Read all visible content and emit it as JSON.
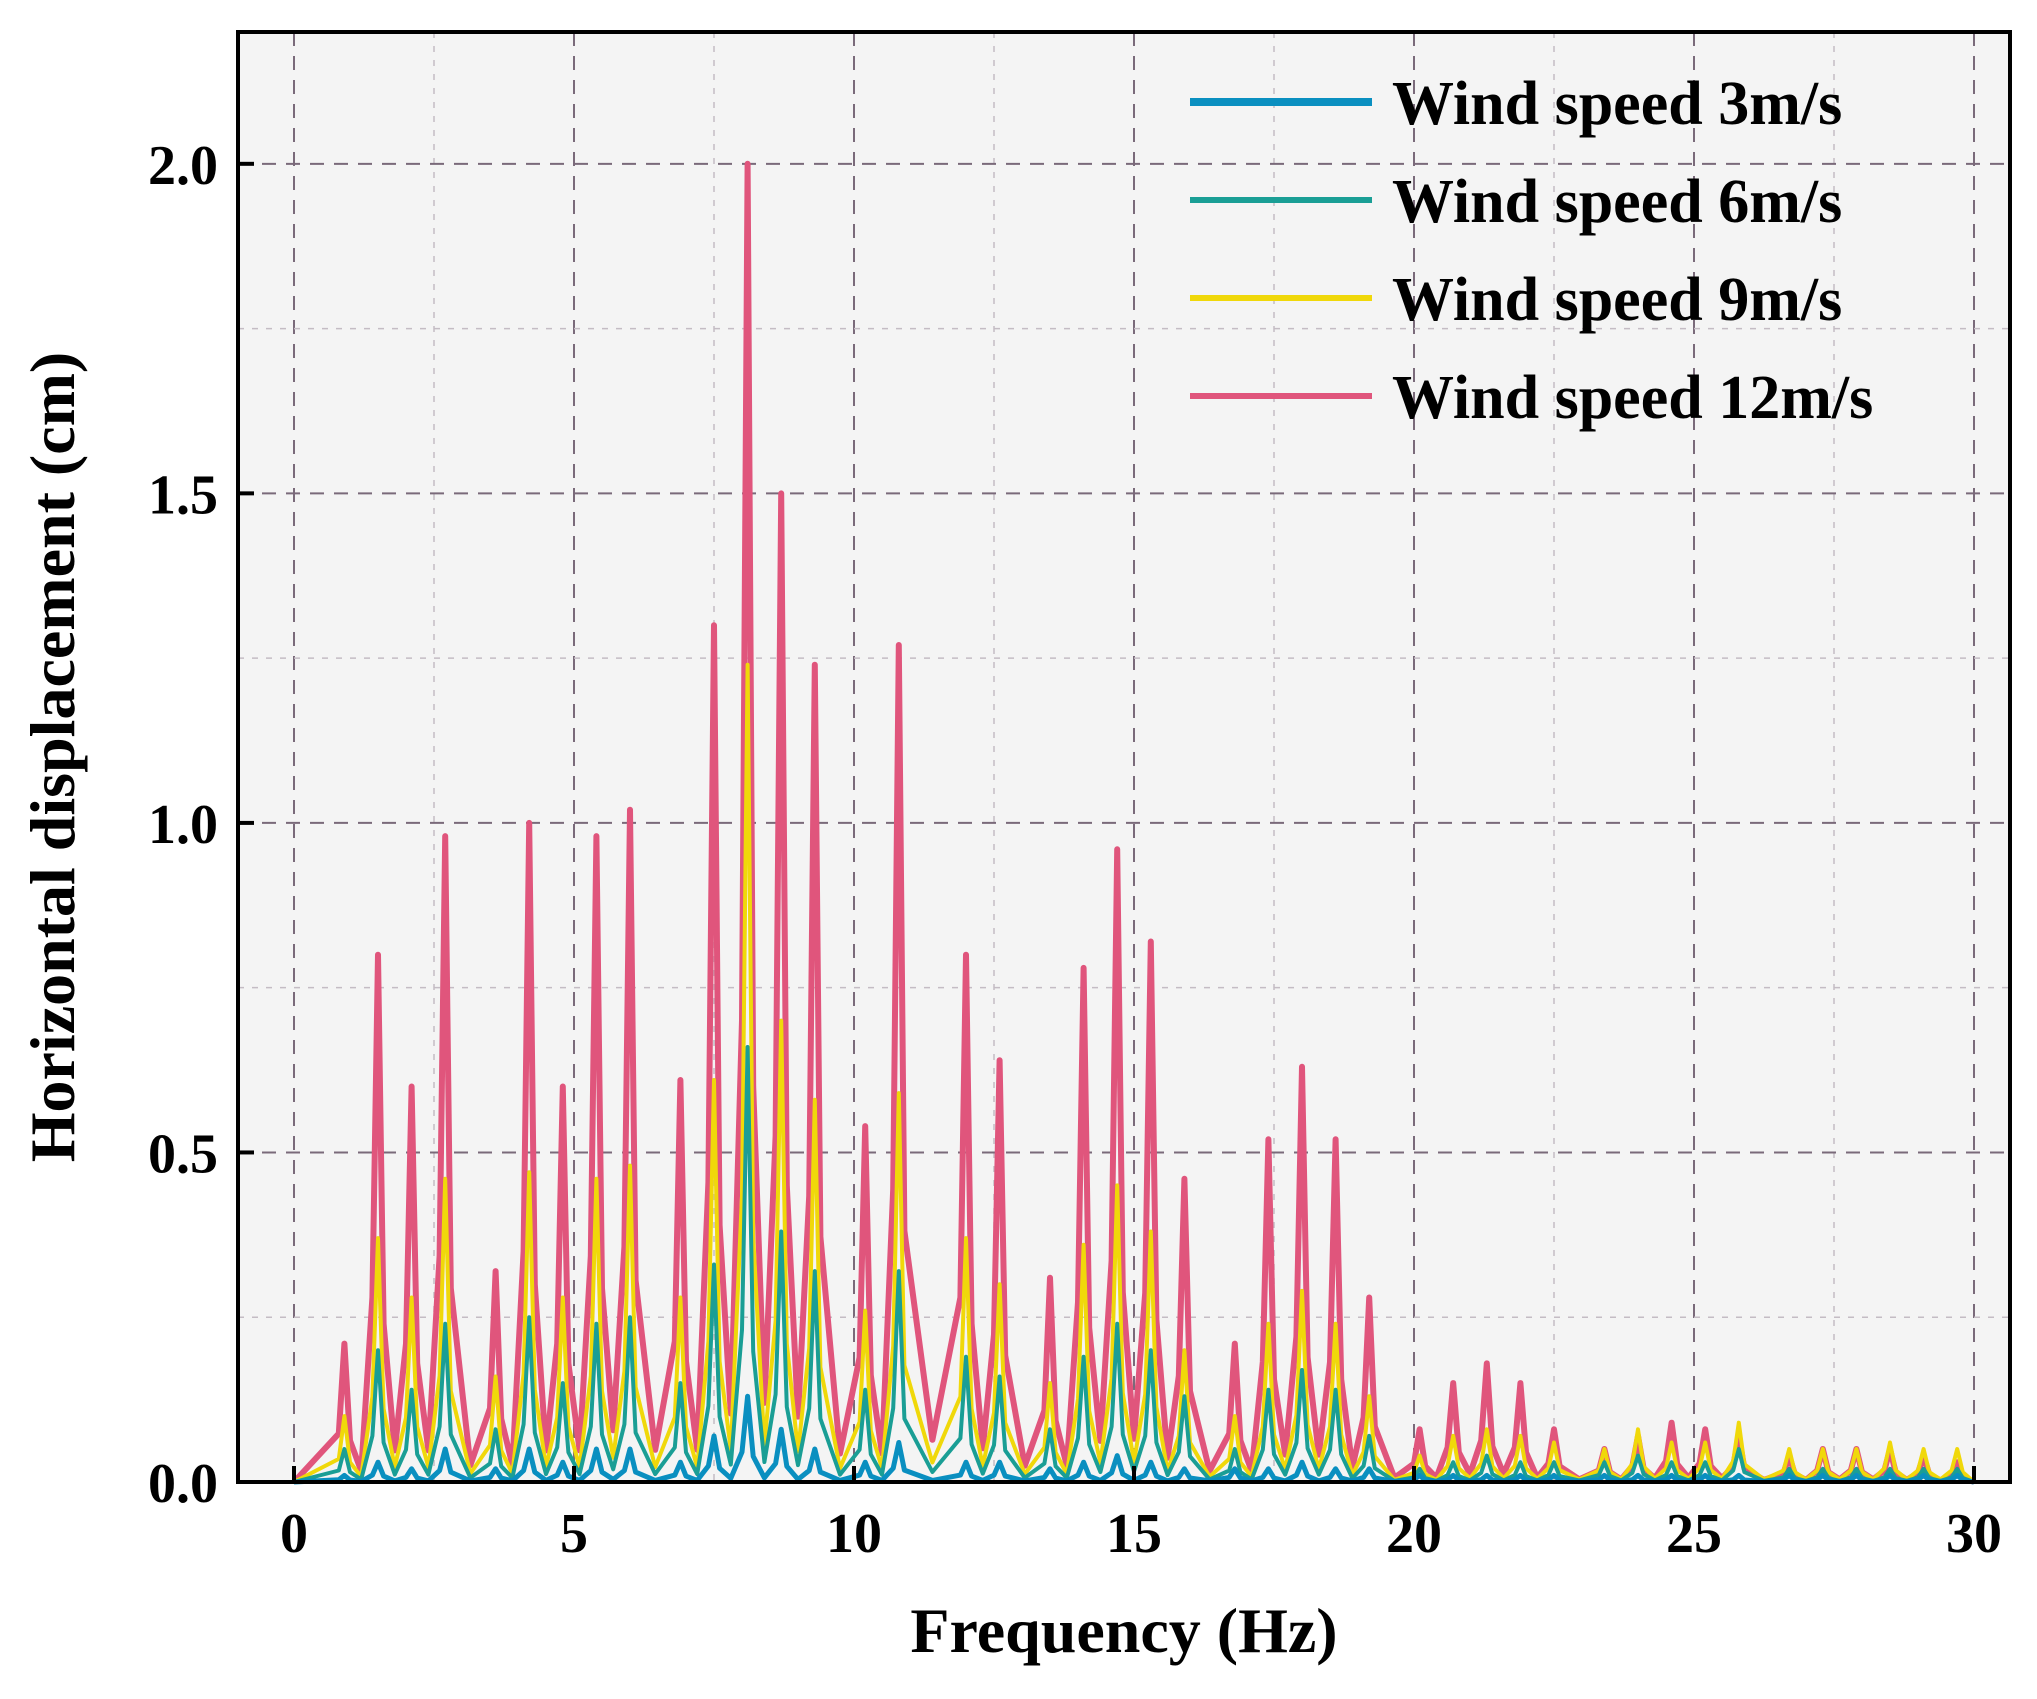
{
  "chart_data": {
    "type": "line",
    "title": "",
    "xlabel": "Frequency (Hz)",
    "ylabel": "Horizontal  displacement (cm)",
    "xlim": [
      -1,
      30.5
    ],
    "ylim": [
      0,
      2.2
    ],
    "xticks": [
      0,
      5,
      10,
      15,
      20,
      25,
      30
    ],
    "yticks": [
      0.0,
      0.5,
      1.0,
      1.5,
      2.0
    ],
    "xtick_labels": [
      "0",
      "5",
      "10",
      "15",
      "20",
      "25",
      "30"
    ],
    "ytick_labels": [
      "0.0",
      "0.5",
      "1.0",
      "1.5",
      "2.0"
    ],
    "grid": true,
    "legend_position": "top-right",
    "peak_frequencies": [
      0.9,
      1.5,
      2.1,
      2.7,
      3.6,
      4.2,
      4.8,
      5.4,
      6.0,
      6.9,
      7.5,
      8.1,
      8.7,
      9.3,
      10.2,
      10.8,
      12.0,
      12.6,
      13.5,
      14.1,
      14.7,
      15.3,
      15.9,
      16.8,
      17.4,
      18.0,
      18.6,
      19.2,
      20.1,
      20.7,
      21.3,
      21.9,
      22.5,
      23.4,
      24.0,
      24.6,
      25.2,
      25.8,
      26.7,
      27.3,
      27.9,
      28.5,
      29.1,
      29.7
    ],
    "series": [
      {
        "name": "Wind speed 3m/s",
        "color": "#0a8fc0",
        "values": [
          0.01,
          0.03,
          0.02,
          0.05,
          0.02,
          0.05,
          0.03,
          0.05,
          0.05,
          0.03,
          0.07,
          0.13,
          0.08,
          0.05,
          0.03,
          0.06,
          0.03,
          0.03,
          0.02,
          0.03,
          0.04,
          0.03,
          0.02,
          0.02,
          0.02,
          0.03,
          0.02,
          0.02,
          0.01,
          0.01,
          0.01,
          0.01,
          0.01,
          0.01,
          0.01,
          0.01,
          0.01,
          0.01,
          0.01,
          0.01,
          0.01,
          0.01,
          0.01,
          0.01
        ]
      },
      {
        "name": "Wind speed 6m/s",
        "color": "#1a9e95",
        "values": [
          0.05,
          0.2,
          0.14,
          0.24,
          0.08,
          0.25,
          0.15,
          0.24,
          0.25,
          0.15,
          0.33,
          0.66,
          0.38,
          0.32,
          0.14,
          0.32,
          0.19,
          0.16,
          0.08,
          0.19,
          0.24,
          0.2,
          0.13,
          0.05,
          0.14,
          0.17,
          0.14,
          0.07,
          0.02,
          0.03,
          0.04,
          0.03,
          0.03,
          0.03,
          0.04,
          0.03,
          0.03,
          0.05,
          0.02,
          0.02,
          0.02,
          0.02,
          0.02,
          0.02
        ]
      },
      {
        "name": "Wind speed 9m/s",
        "color": "#f0d80a",
        "values": [
          0.1,
          0.37,
          0.28,
          0.46,
          0.16,
          0.47,
          0.28,
          0.46,
          0.48,
          0.28,
          0.61,
          1.24,
          0.7,
          0.58,
          0.26,
          0.59,
          0.37,
          0.3,
          0.15,
          0.36,
          0.45,
          0.38,
          0.2,
          0.1,
          0.24,
          0.29,
          0.24,
          0.13,
          0.04,
          0.07,
          0.08,
          0.07,
          0.06,
          0.05,
          0.08,
          0.06,
          0.06,
          0.09,
          0.05,
          0.05,
          0.05,
          0.06,
          0.05,
          0.05
        ]
      },
      {
        "name": "Wind speed 12m/s",
        "color": "#e0557c",
        "values": [
          0.21,
          0.8,
          0.6,
          0.98,
          0.32,
          1.0,
          0.6,
          0.98,
          1.02,
          0.61,
          1.3,
          2.0,
          1.5,
          1.24,
          0.54,
          1.27,
          0.8,
          0.64,
          0.31,
          0.78,
          0.96,
          0.82,
          0.46,
          0.21,
          0.52,
          0.63,
          0.52,
          0.28,
          0.08,
          0.15,
          0.18,
          0.15,
          0.08,
          0.05,
          0.07,
          0.09,
          0.08,
          0.07,
          0.04,
          0.05,
          0.05,
          0.05,
          0.04,
          0.03
        ]
      }
    ]
  }
}
